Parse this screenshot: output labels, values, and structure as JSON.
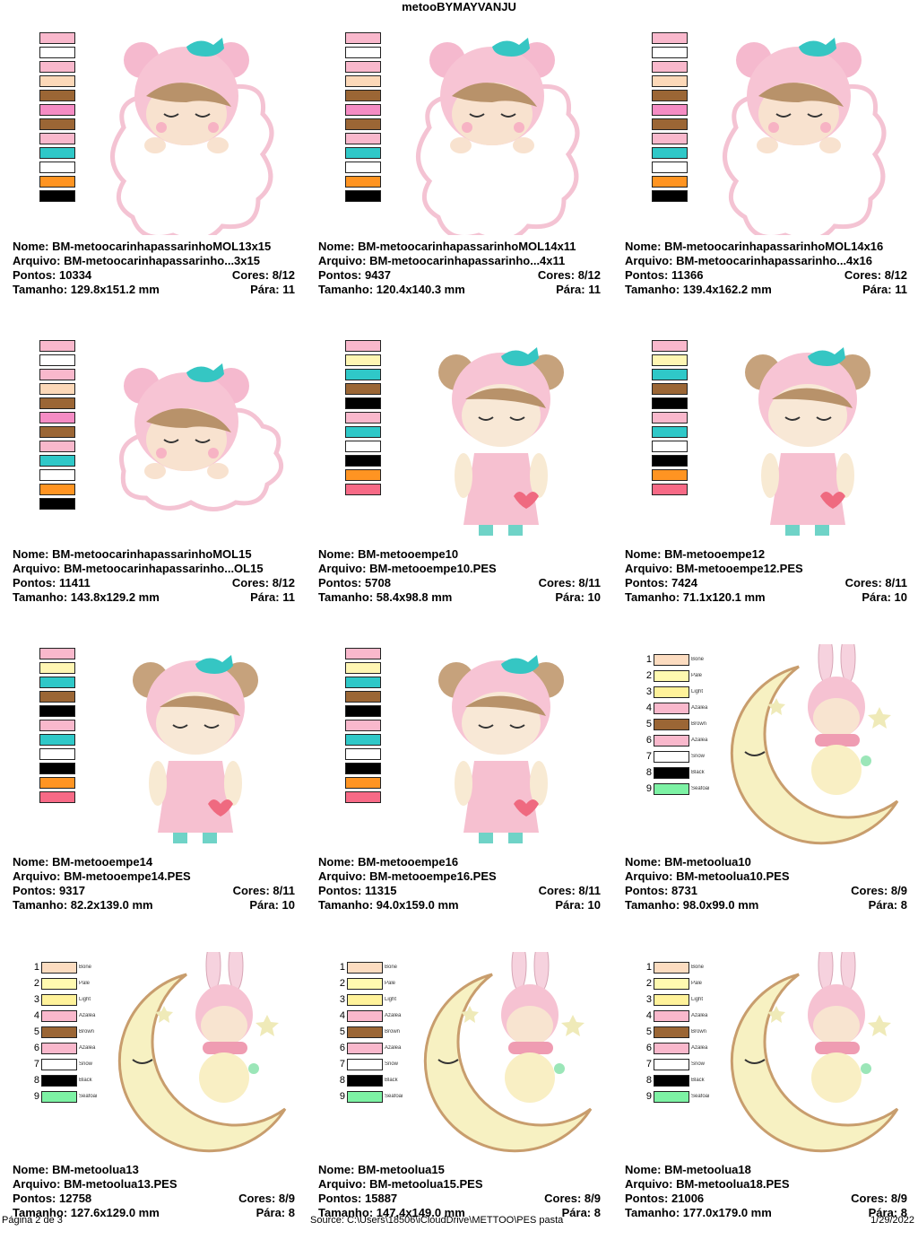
{
  "header": {
    "title": "metooBYMAYVANJU"
  },
  "labels": {
    "name": "Nome:",
    "file": "Arquivo:",
    "points": "Pontos:",
    "colors": "Cores:",
    "stops": "Pára:",
    "size": "Tamanho:"
  },
  "palettes": {
    "A": [
      "#f9b8cc",
      "#ffffff",
      "#f9b8cc",
      "#fcd8b8",
      "#9b6635",
      "#f58cc4",
      "#9b6635",
      "#f9b8cc",
      "#2fc8c8",
      "#ffffff",
      "#ff9422",
      "#000000"
    ],
    "B": [
      "#f9b8cc",
      "#fff6b3",
      "#2fc8c8",
      "#9b6635",
      "#000000",
      "#f9b8cc",
      "#2fc8c8",
      "#ffffff",
      "#000000",
      "#ff9422",
      "#f76a86"
    ]
  },
  "legend_moon": [
    {
      "n": "1",
      "color": "#fcdcc0",
      "name": "Bone"
    },
    {
      "n": "2",
      "color": "#fffab0",
      "name": "Pale"
    },
    {
      "n": "3",
      "color": "#fff29a",
      "name": "Light"
    },
    {
      "n": "4",
      "color": "#f9b8cc",
      "name": "Azalea"
    },
    {
      "n": "5",
      "color": "#9b6635",
      "name": "Brown"
    },
    {
      "n": "6",
      "color": "#f9b8cc",
      "name": "Azalea"
    },
    {
      "n": "7",
      "color": "#ffffff",
      "name": "Snow"
    },
    {
      "n": "8",
      "color": "#000000",
      "name": "Black"
    },
    {
      "n": "9",
      "color": "#7df2a4",
      "name": "Seafoam"
    }
  ],
  "designs": [
    {
      "name": "BM-metoocarinhapassarinhoMOL13x15",
      "file": "BM-metoocarinhapassarinho...3x15",
      "points": "10334",
      "colors": "8/12",
      "size": "129.8x151.2 mm",
      "stops": "11"
    },
    {
      "name": "BM-metoocarinhapassarinhoMOL14x11",
      "file": "BM-metoocarinhapassarinho...4x11",
      "points": "9437",
      "colors": "8/12",
      "size": "120.4x140.3 mm",
      "stops": "11"
    },
    {
      "name": "BM-metoocarinhapassarinhoMOL14x16",
      "file": "BM-metoocarinhapassarinho...4x16",
      "points": "11366",
      "colors": "8/12",
      "size": "139.4x162.2 mm",
      "stops": "11"
    },
    {
      "name": "BM-metoocarinhapassarinhoMOL15",
      "file": "BM-metoocarinhapassarinho...OL15",
      "points": "11411",
      "colors": "8/12",
      "size": "143.8x129.2 mm",
      "stops": "11"
    },
    {
      "name": "BM-metooempe10",
      "file": "BM-metooempe10.PES",
      "points": "5708",
      "colors": "8/11",
      "size": "58.4x98.8 mm",
      "stops": "10"
    },
    {
      "name": "BM-metooempe12",
      "file": "BM-metooempe12.PES",
      "points": "7424",
      "colors": "8/11",
      "size": "71.1x120.1 mm",
      "stops": "10"
    },
    {
      "name": "BM-metooempe14",
      "file": "BM-metooempe14.PES",
      "points": "9317",
      "colors": "8/11",
      "size": "82.2x139.0 mm",
      "stops": "10"
    },
    {
      "name": "BM-metooempe16",
      "file": "BM-metooempe16.PES",
      "points": "11315",
      "colors": "8/11",
      "size": "94.0x159.0 mm",
      "stops": "10"
    },
    {
      "name": "BM-metoolua10",
      "file": "BM-metoolua10.PES",
      "points": "8731",
      "colors": "8/9",
      "size": "98.0x99.0 mm",
      "stops": "8"
    },
    {
      "name": "BM-metoolua13",
      "file": "BM-metoolua13.PES",
      "points": "12758",
      "colors": "8/9",
      "size": "127.6x129.0 mm",
      "stops": "8"
    },
    {
      "name": "BM-metoolua15",
      "file": "BM-metoolua15.PES",
      "points": "15887",
      "colors": "8/9",
      "size": "147.4x149.0 mm",
      "stops": "8"
    },
    {
      "name": "BM-metoolua18",
      "file": "BM-metoolua18.PES",
      "points": "21006",
      "colors": "8/9",
      "size": "177.0x179.0 mm",
      "stops": "8"
    }
  ],
  "footer": {
    "page": "Página 2 de 3",
    "source": "Source: C:\\Users\\18506\\iCloudDrive\\METTOO\\PES pasta",
    "date": "1/29/2022"
  }
}
